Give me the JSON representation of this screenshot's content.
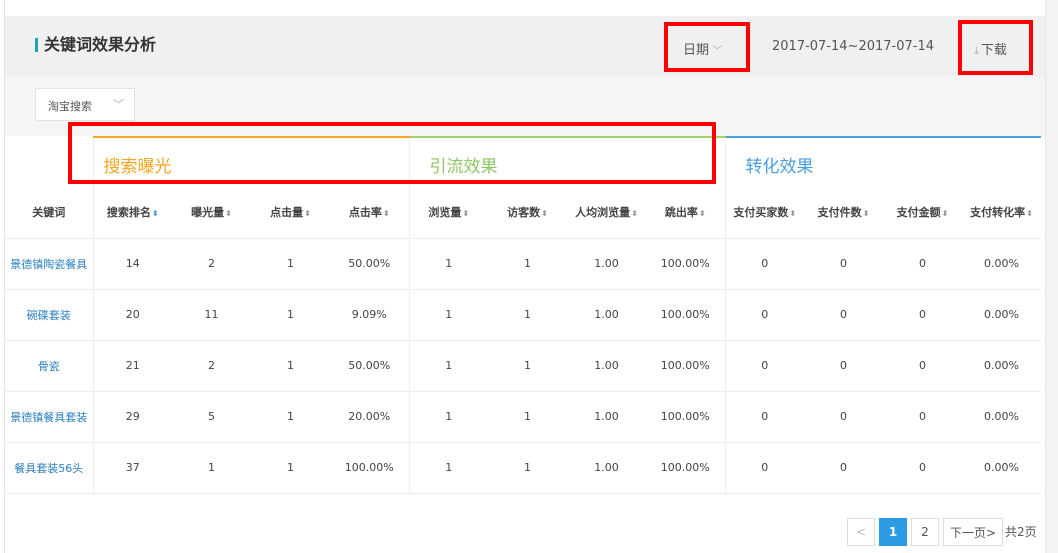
{
  "header": {
    "title": "关键词效果分析",
    "date_selector": "日期",
    "date_range": "2017-07-14~2017-07-14",
    "download_label": "下载"
  },
  "filter": {
    "source_select": "淘宝搜索"
  },
  "groups": [
    "搜索曝光",
    "引流效果",
    "转化效果"
  ],
  "group_colors": [
    "#f5a623",
    "#8bc765",
    "#4b9ede"
  ],
  "columns": [
    "关键词",
    "搜索排名",
    "曝光量",
    "点击量",
    "点击率",
    "浏览量",
    "访客数",
    "人均浏览量",
    "跳出率",
    "支付买家数",
    "支付件数",
    "支付金额",
    "支付转化率"
  ],
  "rows": [
    [
      "景德镇陶瓷餐具",
      "14",
      "2",
      "1",
      "50.00%",
      "1",
      "1",
      "1.00",
      "100.00%",
      "0",
      "0",
      "0",
      "0.00%"
    ],
    [
      "碗碟套装",
      "20",
      "11",
      "1",
      "9.09%",
      "1",
      "1",
      "1.00",
      "100.00%",
      "0",
      "0",
      "0",
      "0.00%"
    ],
    [
      "骨瓷",
      "21",
      "2",
      "1",
      "50.00%",
      "1",
      "1",
      "1.00",
      "100.00%",
      "0",
      "0",
      "0",
      "0.00%"
    ],
    [
      "景德镇餐具套装",
      "29",
      "5",
      "1",
      "20.00%",
      "1",
      "1",
      "1.00",
      "100.00%",
      "0",
      "0",
      "0",
      "0.00%"
    ],
    [
      "餐具套装56头",
      "37",
      "1",
      "1",
      "100.00%",
      "1",
      "1",
      "1.00",
      "100.00%",
      "0",
      "0",
      "0",
      "0.00%"
    ]
  ],
  "pagination": {
    "prev": "<",
    "pages": [
      "1",
      "2"
    ],
    "current": "1",
    "next": "下一页>",
    "total": "共2页"
  }
}
